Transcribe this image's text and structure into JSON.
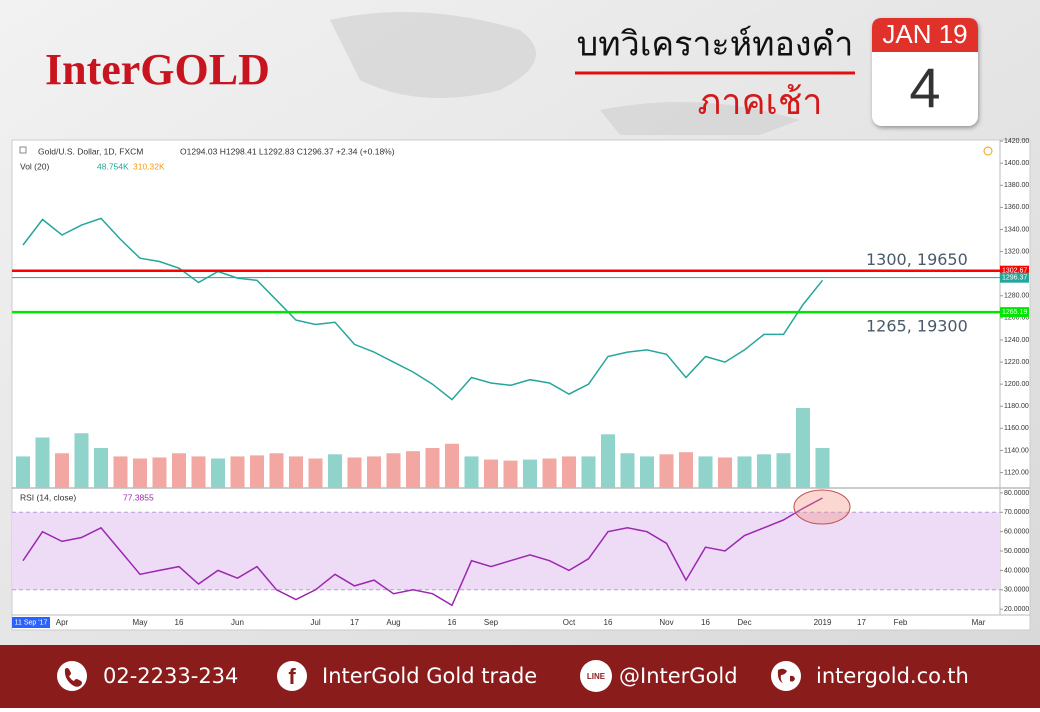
{
  "header": {
    "logo": "InterGOLD",
    "title": "บทวิเคราะห์ทองคำ",
    "subtitle": "ภาคเช้า",
    "calendar": {
      "month_year": "JAN 19",
      "day": "4"
    }
  },
  "chart_data": [
    {
      "type": "line",
      "title": "Gold/U.S. Dollar, 1D, FXCM",
      "ohlc_text": "O1294.03 H1298.41 L1292.83 C1296.37 +2.34 (+0.18%)",
      "color": "#26a69a",
      "values": [
        1326,
        1349,
        1335,
        1344,
        1350,
        1331,
        1314,
        1311,
        1305,
        1292,
        1302,
        1296,
        1294,
        1276,
        1258,
        1254,
        1256,
        1236,
        1229,
        1220,
        1211,
        1200,
        1186,
        1206,
        1201,
        1199,
        1204,
        1201,
        1191,
        1200,
        1225,
        1229,
        1231,
        1227,
        1206,
        1225,
        1220,
        1231,
        1245,
        1245,
        1272,
        1294,
        null,
        null,
        null,
        null,
        null,
        null,
        null,
        null
      ],
      "ylim": [
        1106,
        1421
      ],
      "yticks": [
        {
          "value": 1120,
          "label": "1120.00"
        },
        {
          "value": 1140,
          "label": "1140.00"
        },
        {
          "value": 1160,
          "label": "1160.00"
        },
        {
          "value": 1180,
          "label": "1180.00"
        },
        {
          "value": 1200,
          "label": "1200.00"
        },
        {
          "value": 1220,
          "label": "1220.00"
        },
        {
          "value": 1240,
          "label": "1240.00"
        },
        {
          "value": 1260,
          "label": "1260.00"
        },
        {
          "value": 1280,
          "label": "1280.00"
        },
        {
          "value": 1300,
          "label": "1300.00"
        },
        {
          "value": 1320,
          "label": "1320.00"
        },
        {
          "value": 1340,
          "label": "1340.00"
        },
        {
          "value": 1360,
          "label": "1360.00"
        },
        {
          "value": 1380,
          "label": "1380.00"
        },
        {
          "value": 1400,
          "label": "1400.00"
        },
        {
          "value": 1420,
          "label": "1420.00"
        }
      ],
      "grid": false,
      "levels": [
        {
          "value": 1302.67,
          "color": "#ff0000",
          "annotation": "1300, 19650"
        },
        {
          "value": 1296.37,
          "color": "#26a69a"
        },
        {
          "value": 1265.19,
          "color": "#00e600",
          "annotation": "1265, 19300"
        }
      ]
    },
    {
      "type": "bar",
      "title": "Vol (20)",
      "legend_texts": [
        "48.754K",
        "310.32K"
      ],
      "up_color": "#8fd3cb",
      "down_color": "#f2a7a2",
      "values": [
        300,
        480,
        330,
        520,
        380,
        300,
        280,
        290,
        330,
        300,
        280,
        300,
        310,
        330,
        300,
        280,
        320,
        290,
        300,
        330,
        350,
        380,
        420,
        300,
        270,
        260,
        270,
        280,
        300,
        300,
        510,
        330,
        300,
        320,
        340,
        300,
        290,
        300,
        320,
        330,
        760,
        380,
        null,
        null,
        null,
        null,
        null,
        null,
        null,
        null
      ]
    },
    {
      "type": "line",
      "title": "RSI (14, close)",
      "last_value_label": "77.3855",
      "color": "#9c27b0",
      "band": [
        30,
        70
      ],
      "band_color": "#eedcf7",
      "values": [
        45,
        60,
        55,
        57,
        62,
        50,
        38,
        40,
        42,
        33,
        40,
        36,
        42,
        30,
        25,
        30,
        38,
        32,
        35,
        28,
        30,
        28,
        22,
        45,
        42,
        45,
        48,
        45,
        40,
        46,
        60,
        62,
        60,
        54,
        35,
        52,
        50,
        58,
        62,
        66,
        72,
        77.3855,
        null,
        null,
        null,
        null,
        null,
        null,
        null,
        null
      ],
      "ylim": [
        17,
        81.5
      ],
      "yticks": [
        {
          "value": 20,
          "label": "20.0000"
        },
        {
          "value": 30,
          "label": "30.0000"
        },
        {
          "value": 40,
          "label": "40.0000"
        },
        {
          "value": 50,
          "label": "50.0000"
        },
        {
          "value": 60,
          "label": "60.0000"
        },
        {
          "value": 70,
          "label": "70.0000"
        },
        {
          "value": 80,
          "label": "80.0000"
        }
      ],
      "start_label": "11 Sep '17",
      "categories": [
        null,
        null,
        "Apr",
        null,
        null,
        null,
        "May",
        null,
        "16",
        null,
        null,
        "Jun",
        null,
        null,
        null,
        "Jul",
        null,
        "17",
        null,
        "Aug",
        null,
        null,
        "16",
        null,
        "Sep",
        null,
        null,
        null,
        "Oct",
        null,
        "16",
        null,
        null,
        "Nov",
        null,
        "16",
        null,
        "Dec",
        null,
        null,
        null,
        "2019",
        null,
        "17",
        null,
        "Feb",
        null,
        null,
        null,
        "Mar"
      ]
    }
  ],
  "footer": {
    "phone": "02-2233-234",
    "facebook": "InterGold Gold trade",
    "line_icon": "LINE",
    "line": "@InterGold",
    "website": "intergold.co.th"
  }
}
